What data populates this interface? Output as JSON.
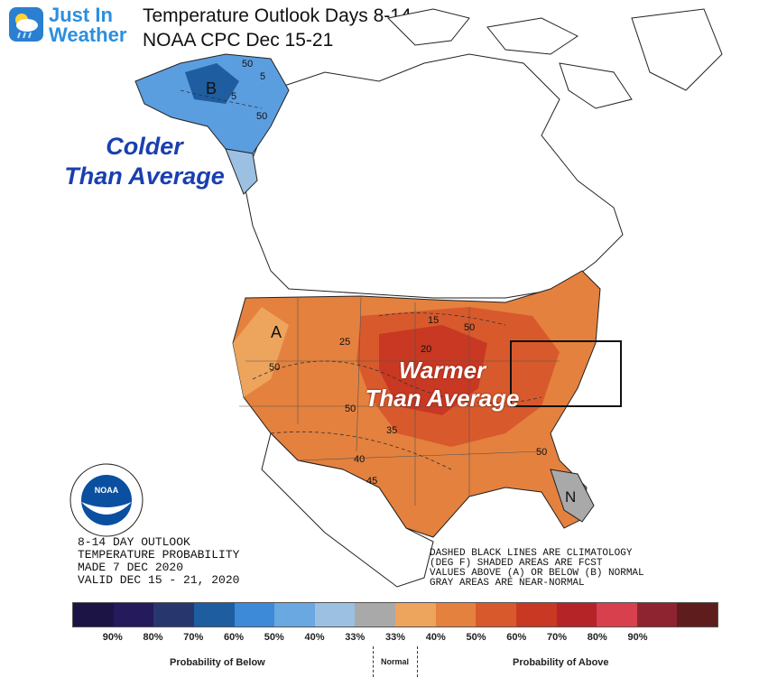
{
  "brand": {
    "line1": "Just In",
    "line2": "Weather"
  },
  "header": {
    "title": "Temperature Outlook Days 8-14",
    "subtitle": "NOAA CPC Dec 15-21"
  },
  "labels": {
    "cold_l1": "Colder",
    "cold_l2": "Than Average",
    "warm_l1": "Warmer",
    "warm_l2": "Than Average"
  },
  "map_letters": {
    "below": "B",
    "above": "A",
    "normal": "N"
  },
  "contours": [
    "50",
    "5",
    "50",
    "5",
    "50",
    "15",
    "25",
    "20",
    "50",
    "50",
    "35",
    "40",
    "45",
    "50"
  ],
  "outlook": {
    "l1": "8-14 DAY OUTLOOK",
    "l2": "TEMPERATURE PROBABILITY",
    "l3": "MADE   7 DEC 2020",
    "l4": "VALID   DEC 15 - 21, 2020"
  },
  "notes": {
    "l1": "DASHED BLACK LINES ARE CLIMATOLOGY",
    "l2": "(DEG F) SHADED AREAS ARE FCST",
    "l3": "VALUES ABOVE (A) OR BELOW (B) NORMAL",
    "l4": "GRAY AREAS ARE NEAR-NORMAL"
  },
  "legend": {
    "colors": [
      "#1b1444",
      "#241a5c",
      "#27376e",
      "#1d5da0",
      "#3d8ad8",
      "#6aa8e2",
      "#9bc0e2",
      "#a9a9a9",
      "#eda45d",
      "#e4813e",
      "#d85a2c",
      "#c93822",
      "#b52427",
      "#d9404e",
      "#8e2430",
      "#5e1d1c"
    ],
    "ticks": [
      "90%",
      "80%",
      "70%",
      "60%",
      "50%",
      "40%",
      "33%",
      "33%",
      "40%",
      "50%",
      "60%",
      "70%",
      "80%",
      "90%"
    ],
    "below_label": "Probability of Below",
    "normal_label": "Normal",
    "above_label": "Probability of Above"
  },
  "noaa_text": "NOAA"
}
